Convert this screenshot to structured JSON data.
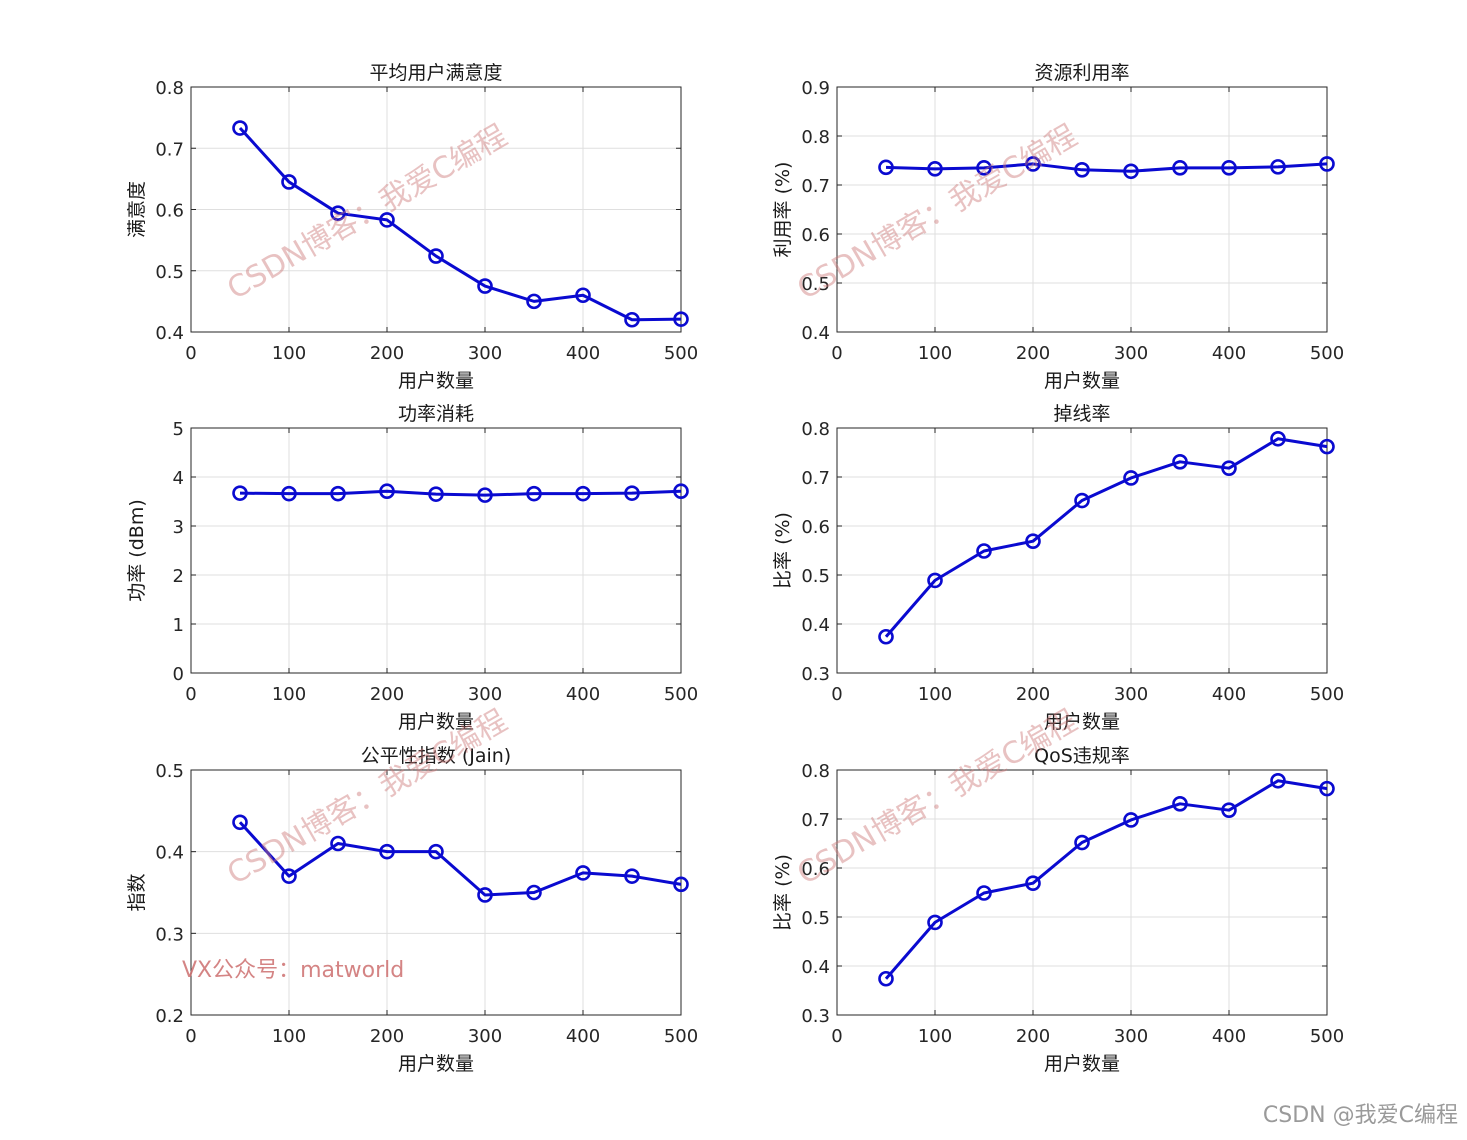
{
  "series_color": "#0a0ad0",
  "chart_data": [
    {
      "type": "line",
      "title": "平均用户满意度",
      "xlabel": "用户数量",
      "ylabel": "满意度",
      "x": [
        50,
        100,
        150,
        200,
        250,
        300,
        350,
        400,
        450,
        500
      ],
      "values": [
        0.733,
        0.645,
        0.594,
        0.583,
        0.524,
        0.475,
        0.45,
        0.46,
        0.42,
        0.421
      ],
      "xlim": [
        0,
        500
      ],
      "ylim": [
        0.4,
        0.8
      ],
      "xticks": [
        0,
        100,
        200,
        300,
        400,
        500
      ],
      "yticks": [
        0.4,
        0.5,
        0.6,
        0.7,
        0.8
      ],
      "xtick_labels": [
        "0",
        "100",
        "200",
        "300",
        "400",
        "500"
      ],
      "ytick_labels": [
        "0.4",
        "0.5",
        "0.6",
        "0.7",
        "0.8"
      ],
      "grid": true
    },
    {
      "type": "line",
      "title": "资源利用率",
      "xlabel": "用户数量",
      "ylabel": "利用率 (%)",
      "x": [
        50,
        100,
        150,
        200,
        250,
        300,
        350,
        400,
        450,
        500
      ],
      "values": [
        0.736,
        0.733,
        0.735,
        0.743,
        0.731,
        0.728,
        0.735,
        0.735,
        0.737,
        0.743
      ],
      "xlim": [
        0,
        500
      ],
      "ylim": [
        0.4,
        0.9
      ],
      "xticks": [
        0,
        100,
        200,
        300,
        400,
        500
      ],
      "yticks": [
        0.4,
        0.5,
        0.6,
        0.7,
        0.8,
        0.9
      ],
      "xtick_labels": [
        "0",
        "100",
        "200",
        "300",
        "400",
        "500"
      ],
      "ytick_labels": [
        "0.4",
        "0.5",
        "0.6",
        "0.7",
        "0.8",
        "0.9"
      ],
      "grid": true
    },
    {
      "type": "line",
      "title": "功率消耗",
      "xlabel": "用户数量",
      "ylabel": "功率 (dBm)",
      "x": [
        50,
        100,
        150,
        200,
        250,
        300,
        350,
        400,
        450,
        500
      ],
      "values": [
        3.67,
        3.66,
        3.66,
        3.71,
        3.65,
        3.63,
        3.66,
        3.66,
        3.67,
        3.71
      ],
      "xlim": [
        0,
        500
      ],
      "ylim": [
        0,
        5
      ],
      "xticks": [
        0,
        100,
        200,
        300,
        400,
        500
      ],
      "yticks": [
        0,
        1,
        2,
        3,
        4,
        5
      ],
      "xtick_labels": [
        "0",
        "100",
        "200",
        "300",
        "400",
        "500"
      ],
      "ytick_labels": [
        "0",
        "1",
        "2",
        "3",
        "4",
        "5"
      ],
      "grid": true
    },
    {
      "type": "line",
      "title": "掉线率",
      "xlabel": "用户数量",
      "ylabel": "比率 (%)",
      "x": [
        50,
        100,
        150,
        200,
        250,
        300,
        350,
        400,
        450,
        500
      ],
      "values": [
        0.374,
        0.489,
        0.549,
        0.569,
        0.652,
        0.698,
        0.731,
        0.718,
        0.778,
        0.762
      ],
      "xlim": [
        0,
        500
      ],
      "ylim": [
        0.3,
        0.8
      ],
      "xticks": [
        0,
        100,
        200,
        300,
        400,
        500
      ],
      "yticks": [
        0.3,
        0.4,
        0.5,
        0.6,
        0.7,
        0.8
      ],
      "xtick_labels": [
        "0",
        "100",
        "200",
        "300",
        "400",
        "500"
      ],
      "ytick_labels": [
        "0.3",
        "0.4",
        "0.5",
        "0.6",
        "0.7",
        "0.8"
      ],
      "grid": true
    },
    {
      "type": "line",
      "title": "公平性指数 (Jain)",
      "xlabel": "用户数量",
      "ylabel": "指数",
      "x": [
        50,
        100,
        150,
        200,
        250,
        300,
        350,
        400,
        450,
        500
      ],
      "values": [
        0.436,
        0.37,
        0.41,
        0.4,
        0.4,
        0.347,
        0.35,
        0.374,
        0.37,
        0.36
      ],
      "xlim": [
        0,
        500
      ],
      "ylim": [
        0.2,
        0.5
      ],
      "xticks": [
        0,
        100,
        200,
        300,
        400,
        500
      ],
      "yticks": [
        0.2,
        0.3,
        0.4,
        0.5
      ],
      "xtick_labels": [
        "0",
        "100",
        "200",
        "300",
        "400",
        "500"
      ],
      "ytick_labels": [
        "0.2",
        "0.3",
        "0.4",
        "0.5"
      ],
      "grid": true
    },
    {
      "type": "line",
      "title": "QoS违规率",
      "xlabel": "用户数量",
      "ylabel": "比率 (%)",
      "x": [
        50,
        100,
        150,
        200,
        250,
        300,
        350,
        400,
        450,
        500
      ],
      "values": [
        0.374,
        0.489,
        0.549,
        0.569,
        0.652,
        0.698,
        0.731,
        0.718,
        0.778,
        0.762
      ],
      "xlim": [
        0,
        500
      ],
      "ylim": [
        0.3,
        0.8
      ],
      "xticks": [
        0,
        100,
        200,
        300,
        400,
        500
      ],
      "yticks": [
        0.3,
        0.4,
        0.5,
        0.6,
        0.7,
        0.8
      ],
      "xtick_labels": [
        "0",
        "100",
        "200",
        "300",
        "400",
        "500"
      ],
      "ytick_labels": [
        "0.3",
        "0.4",
        "0.5",
        "0.6",
        "0.7",
        "0.8"
      ],
      "grid": true
    }
  ],
  "watermarks": {
    "blog": "CSDN博客：我爱C编程",
    "wechat": "VX公众号：matworld",
    "footer": "CSDN @我爱C编程"
  }
}
